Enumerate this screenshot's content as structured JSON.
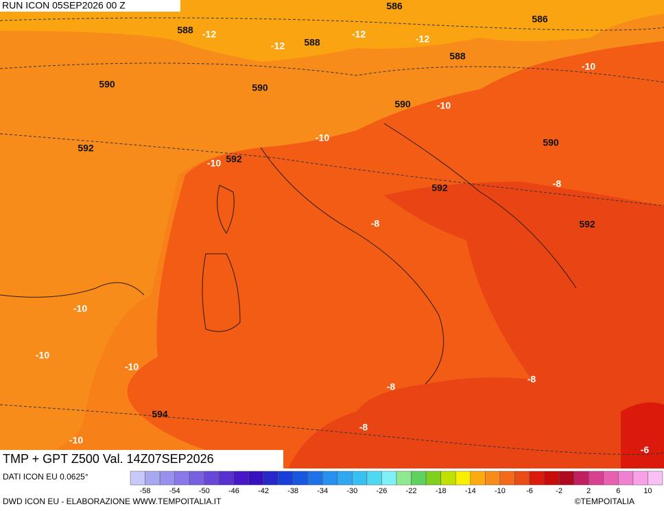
{
  "header": {
    "run": "RUN ICON 05SEP2026 00 Z"
  },
  "map_labels": [
    586,
    586,
    588,
    -12,
    -12,
    -12,
    -12,
    588,
    588,
    -10,
    590,
    590,
    590,
    -10,
    592,
    -10,
    592,
    -10,
    590,
    -8,
    592,
    -8,
    592,
    -10,
    -10,
    -10,
    -8,
    -8,
    594,
    -8,
    -10,
    -6
  ],
  "footer": {
    "title": "TMP + GPT Z500 Val. 14Z07SEP2026",
    "source": "DATI ICON EU 0.0625°",
    "credit": "DWD ICON EU - ELABORAZIONE WWW.TEMPOITALIA.IT",
    "copyright": "©TEMPOITALIA"
  },
  "legend": {
    "ticks": [
      -58,
      -54,
      -50,
      -46,
      -42,
      -38,
      -34,
      -30,
      -26,
      -22,
      -18,
      -14,
      -10,
      -6,
      -2,
      2,
      6,
      10
    ],
    "colors": [
      "#c8c8fa",
      "#a8a8f0",
      "#9890ec",
      "#8878e8",
      "#7860e0",
      "#6848d8",
      "#5830d0",
      "#4818c8",
      "#3810c0",
      "#2828c8",
      "#1840d8",
      "#1858e0",
      "#2070e8",
      "#2890f0",
      "#30a8f0",
      "#38c0f0",
      "#50d8f0",
      "#80f0f8",
      "#90e890",
      "#60d060",
      "#80d020",
      "#c0e000",
      "#f8f000",
      "#fbab10",
      "#f88c1a",
      "#f46a1a",
      "#ea4c16",
      "#dc1a0c",
      "#c80c0c",
      "#b00a20",
      "#c02060",
      "#d84090",
      "#e860b0",
      "#f080d0",
      "#f8a0e8",
      "#f8c0f4"
    ]
  }
}
